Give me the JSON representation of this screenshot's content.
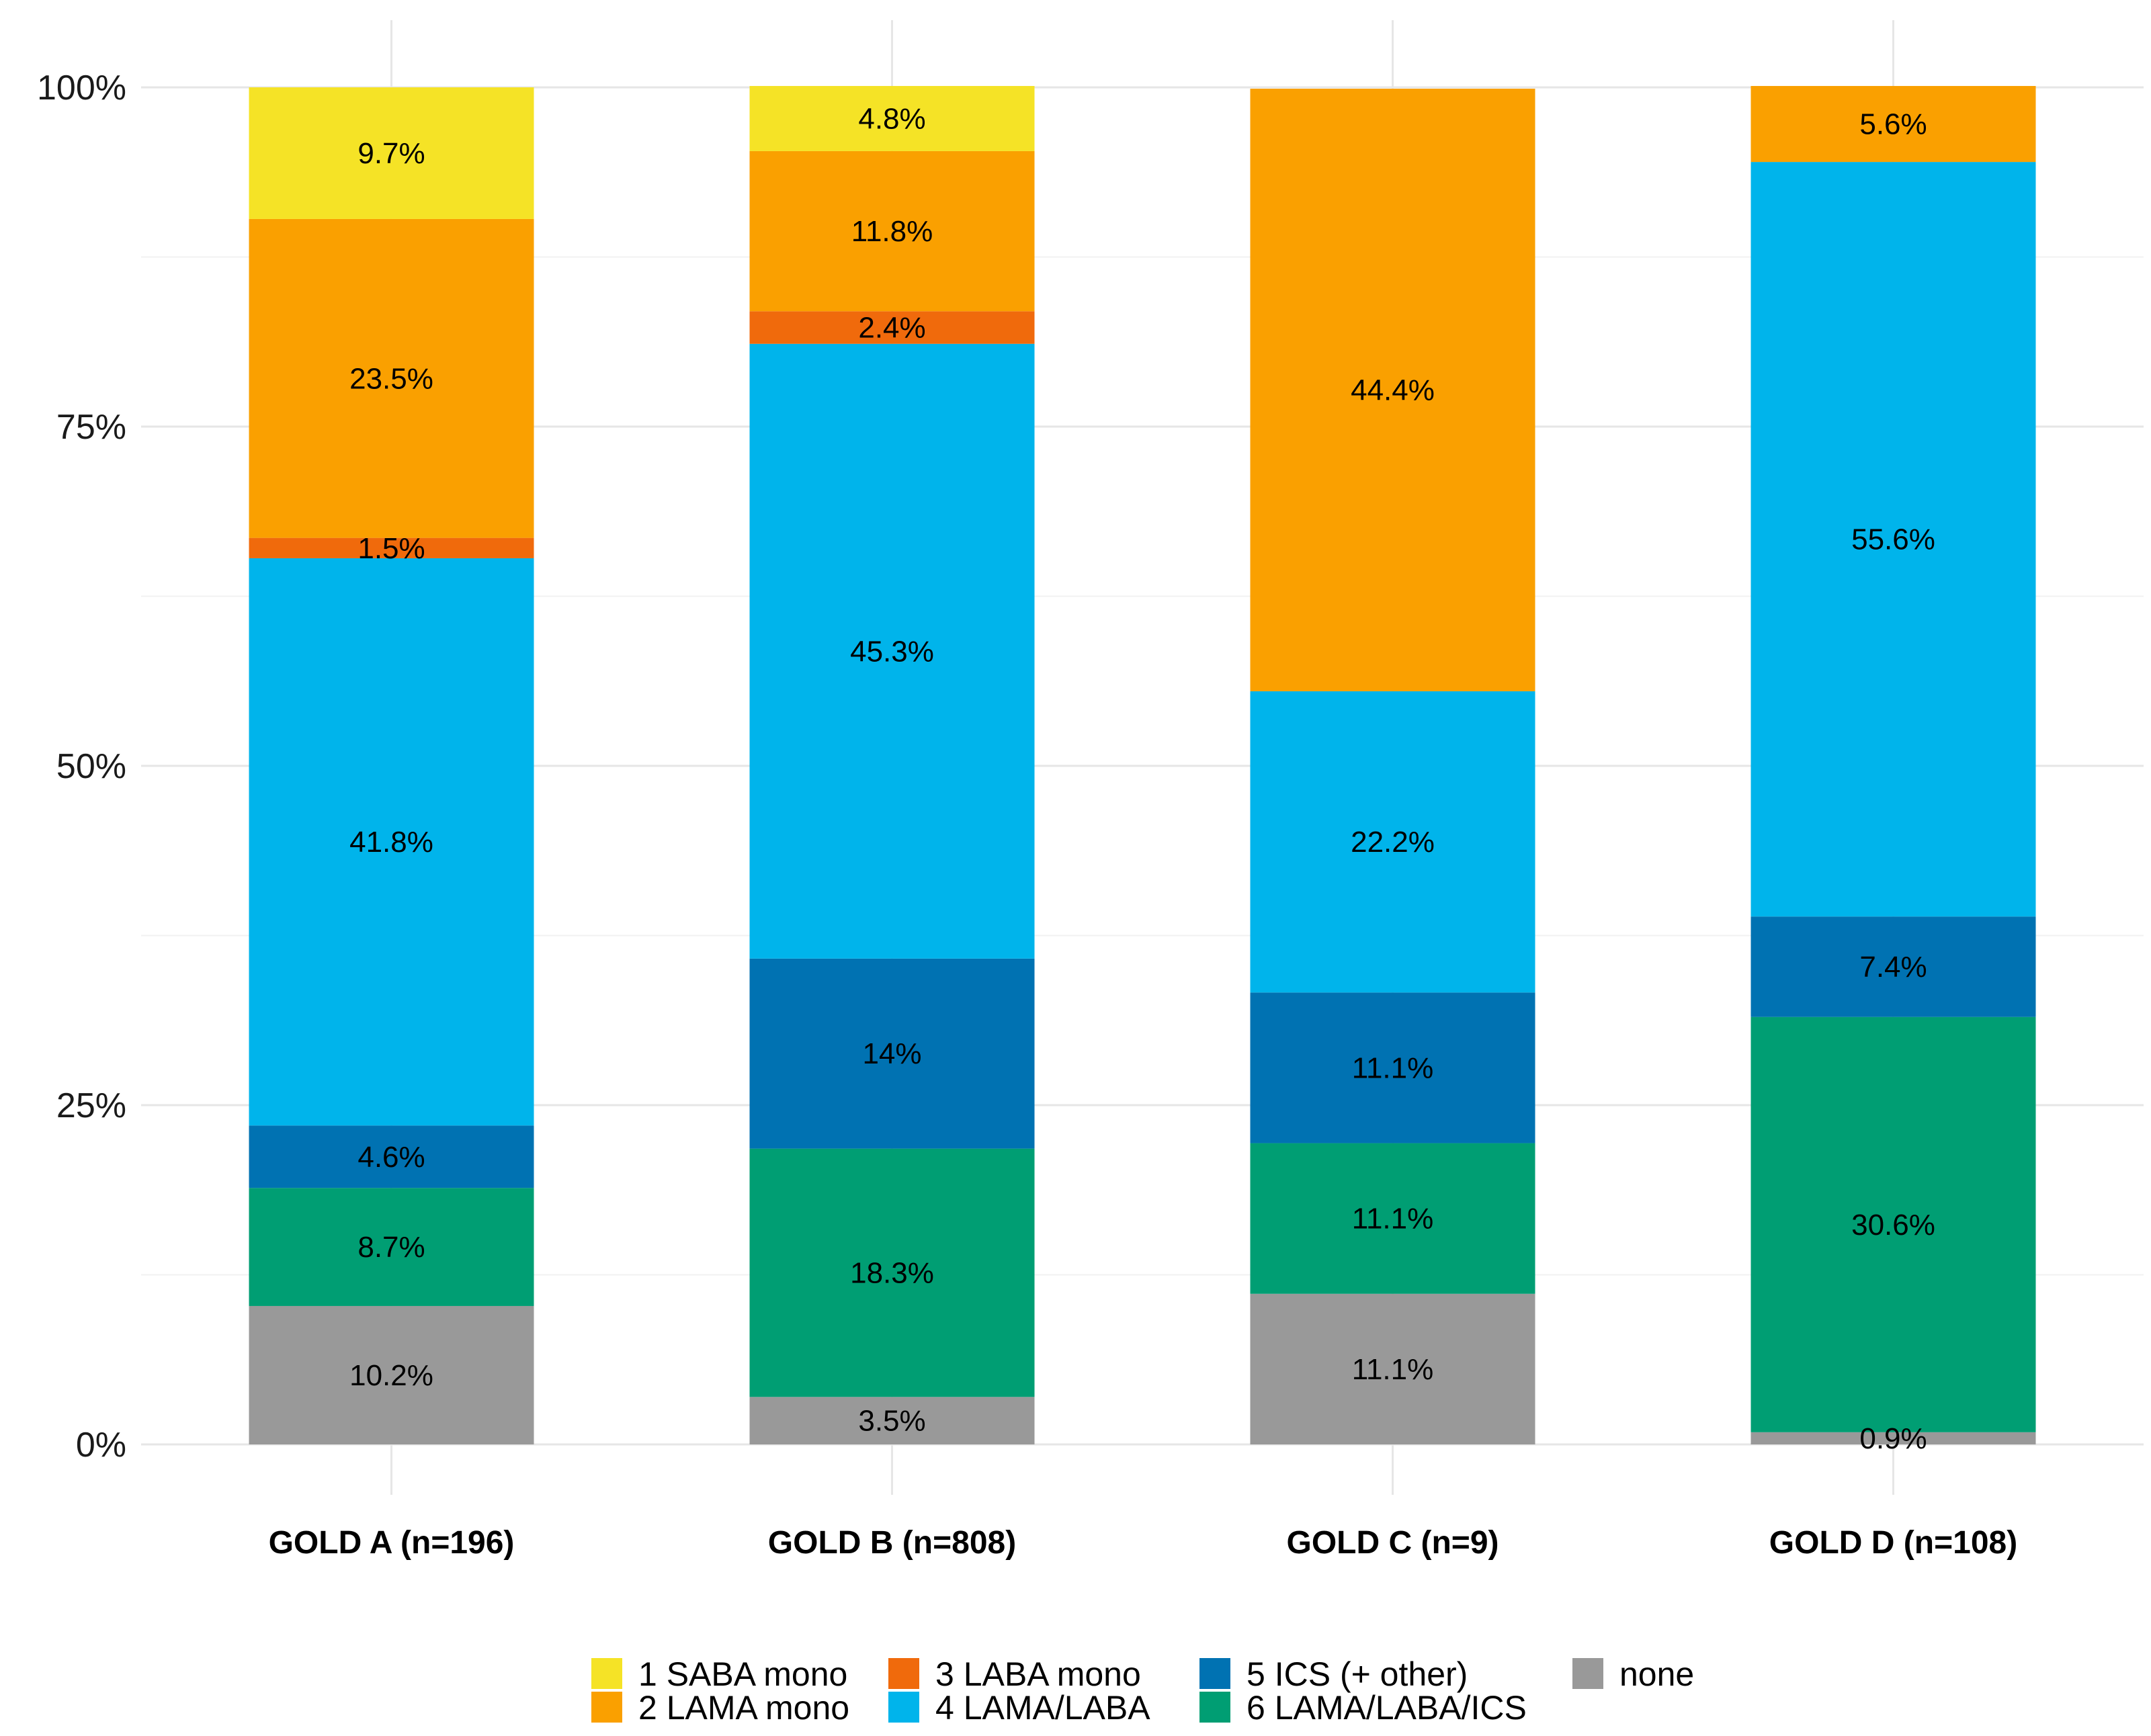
{
  "chart_data": {
    "type": "bar",
    "stacked": true,
    "title": "",
    "xlabel": "",
    "ylabel": "",
    "ylim": [
      0,
      100
    ],
    "y_ticks": [
      "0%",
      "25%",
      "50%",
      "75%",
      "100%"
    ],
    "y_tick_values": [
      0,
      25,
      50,
      75,
      100
    ],
    "grid": true,
    "legend_position": "bottom",
    "categories": [
      "GOLD A (n=196)",
      "GOLD B (n=808)",
      "GOLD C (n=9)",
      "GOLD D (n=108)"
    ],
    "series": [
      {
        "name": "none",
        "color": "#999999",
        "values": [
          10.2,
          3.5,
          11.1,
          0.9
        ],
        "labels": [
          "10.2%",
          "3.5%",
          "11.1%",
          "0.9%"
        ]
      },
      {
        "name": "6 LAMA/LABA/ICS",
        "color": "#009E73",
        "values": [
          8.7,
          18.3,
          11.1,
          30.6
        ],
        "labels": [
          "8.7%",
          "18.3%",
          "11.1%",
          "30.6%"
        ]
      },
      {
        "name": "5 ICS (+ other)",
        "color": "#0072B2",
        "values": [
          4.6,
          14,
          11.1,
          7.4
        ],
        "labels": [
          "4.6%",
          "14%",
          "11.1%",
          "7.4%"
        ]
      },
      {
        "name": "4 LAMA/LABA",
        "color": "#00B4EB",
        "values": [
          41.8,
          45.3,
          22.2,
          55.6
        ],
        "labels": [
          "41.8%",
          "45.3%",
          "22.2%",
          "55.6%"
        ]
      },
      {
        "name": "3 LABA mono",
        "color": "#F06A0C",
        "values": [
          1.5,
          2.4,
          0,
          0
        ],
        "labels": [
          "1.5%",
          "2.4%",
          "",
          ""
        ]
      },
      {
        "name": "2 LAMA mono",
        "color": "#FAA000",
        "values": [
          23.5,
          11.8,
          44.4,
          5.6
        ],
        "labels": [
          "23.5%",
          "11.8%",
          "44.4%",
          "5.6%"
        ]
      },
      {
        "name": "1 SABA mono",
        "color": "#F5E326",
        "values": [
          9.7,
          4.8,
          0,
          0
        ],
        "labels": [
          "9.7%",
          "4.8%",
          "",
          ""
        ]
      }
    ],
    "legend": {
      "entries": [
        {
          "name": "1 SABA mono",
          "color": "#F5E326"
        },
        {
          "name": "2 LAMA mono",
          "color": "#FAA000"
        },
        {
          "name": "3 LABA mono",
          "color": "#F06A0C"
        },
        {
          "name": "4 LAMA/LABA",
          "color": "#00B4EB"
        },
        {
          "name": "5 ICS (+ other)",
          "color": "#0072B2"
        },
        {
          "name": "6 LAMA/LABA/ICS",
          "color": "#009E73"
        },
        {
          "name": "none",
          "color": "#999999"
        }
      ]
    }
  }
}
